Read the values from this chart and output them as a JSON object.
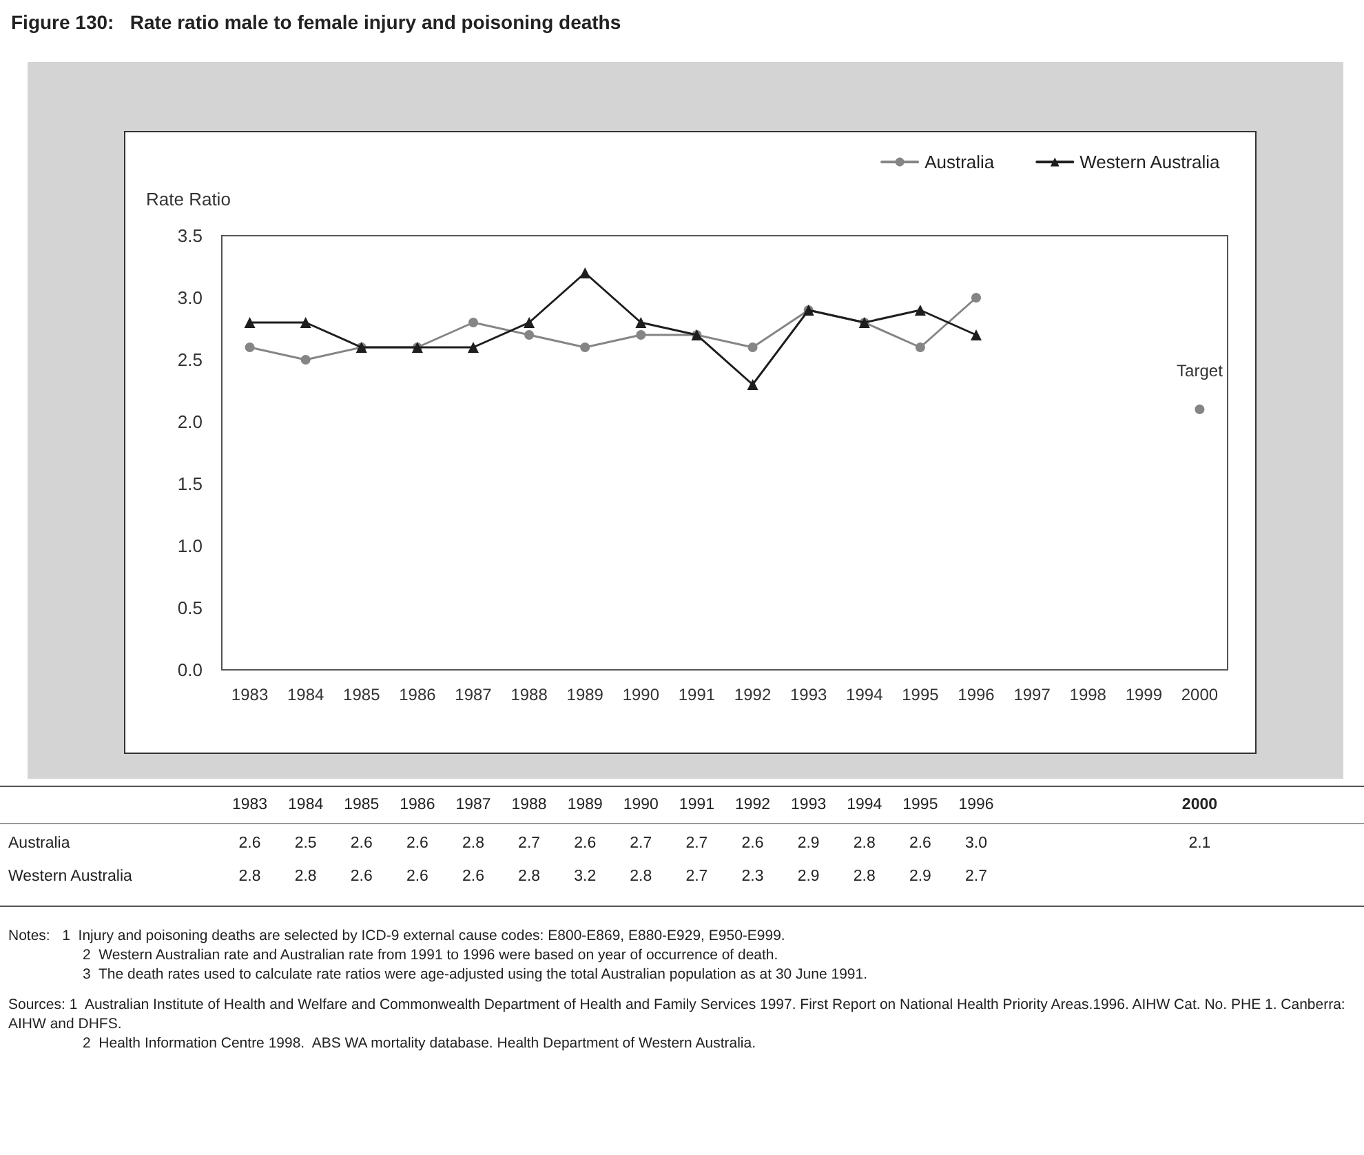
{
  "chart_data": {
    "type": "line",
    "title": "Figure 130:   Rate ratio male to female injury and poisoning deaths",
    "ylabel": "Rate Ratio",
    "categories": [
      "1983",
      "1984",
      "1985",
      "1986",
      "1987",
      "1988",
      "1989",
      "1990",
      "1991",
      "1992",
      "1993",
      "1994",
      "1995",
      "1996",
      "1997",
      "1998",
      "1999",
      "2000"
    ],
    "series": [
      {
        "name": "Australia",
        "color": "#858585",
        "marker": "circle",
        "values": [
          2.6,
          2.5,
          2.6,
          2.6,
          2.8,
          2.7,
          2.6,
          2.7,
          2.7,
          2.6,
          2.9,
          2.8,
          2.6,
          3.0,
          null,
          null,
          null,
          2.1
        ],
        "value_labels": [
          "2.6",
          "2.5",
          "2.6",
          "2.6",
          "2.8",
          "2.7",
          "2.6",
          "2.7",
          "2.7",
          "2.6",
          "2.9",
          "2.8",
          "2.6",
          "3.0",
          null,
          null,
          null,
          "2.1"
        ]
      },
      {
        "name": "Western Australia",
        "color": "#1e1e1e",
        "marker": "triangle",
        "values": [
          2.8,
          2.8,
          2.6,
          2.6,
          2.6,
          2.8,
          3.2,
          2.8,
          2.7,
          2.3,
          2.9,
          2.8,
          2.9,
          2.7,
          null,
          null,
          null,
          null
        ],
        "value_labels": [
          "2.8",
          "2.8",
          "2.6",
          "2.6",
          "2.6",
          "2.8",
          "3.2",
          "2.8",
          "2.7",
          "2.3",
          "2.9",
          "2.8",
          "2.9",
          "2.7",
          null,
          null,
          null,
          null
        ]
      }
    ],
    "ylim": [
      0,
      3.5
    ],
    "yticks": [
      {
        "value": 0,
        "label": "0.0"
      },
      0.5,
      {
        "value": 1,
        "label": "1.0"
      },
      1.5,
      {
        "value": 2,
        "label": "2.0"
      },
      2.5,
      {
        "value": 3,
        "label": "3.0"
      },
      3.5
    ],
    "grid": false,
    "legend": "top right",
    "line_style": "solid",
    "annotations": [
      {
        "text": "Target",
        "x": "2000",
        "y": 2.1
      },
      "Notes:   1  Injury and poisoning deaths are selected by ICD-9 external cause codes: E800-E869, E880-E929, E950-E999.",
      "2  Western Australian rate and Australian rate from 1991 to 1996 were based on year of occurrence of death.",
      "3  The death rates used to calculate rate ratios were age-adjusted using the total Australian population as at 30 June 1991.",
      "Sources: 1  Australian Institute of Health and Welfare and Commonwealth Department of Health and Family Services 1997. First Report on National Health Priority Areas.1996. AIHW Cat. No. PHE 1. Canberra: AIHW and DHFS.",
      "2  Health Information Centre 1998.  ABS WA mortality database. Health Department of Western Australia."
    ]
  }
}
